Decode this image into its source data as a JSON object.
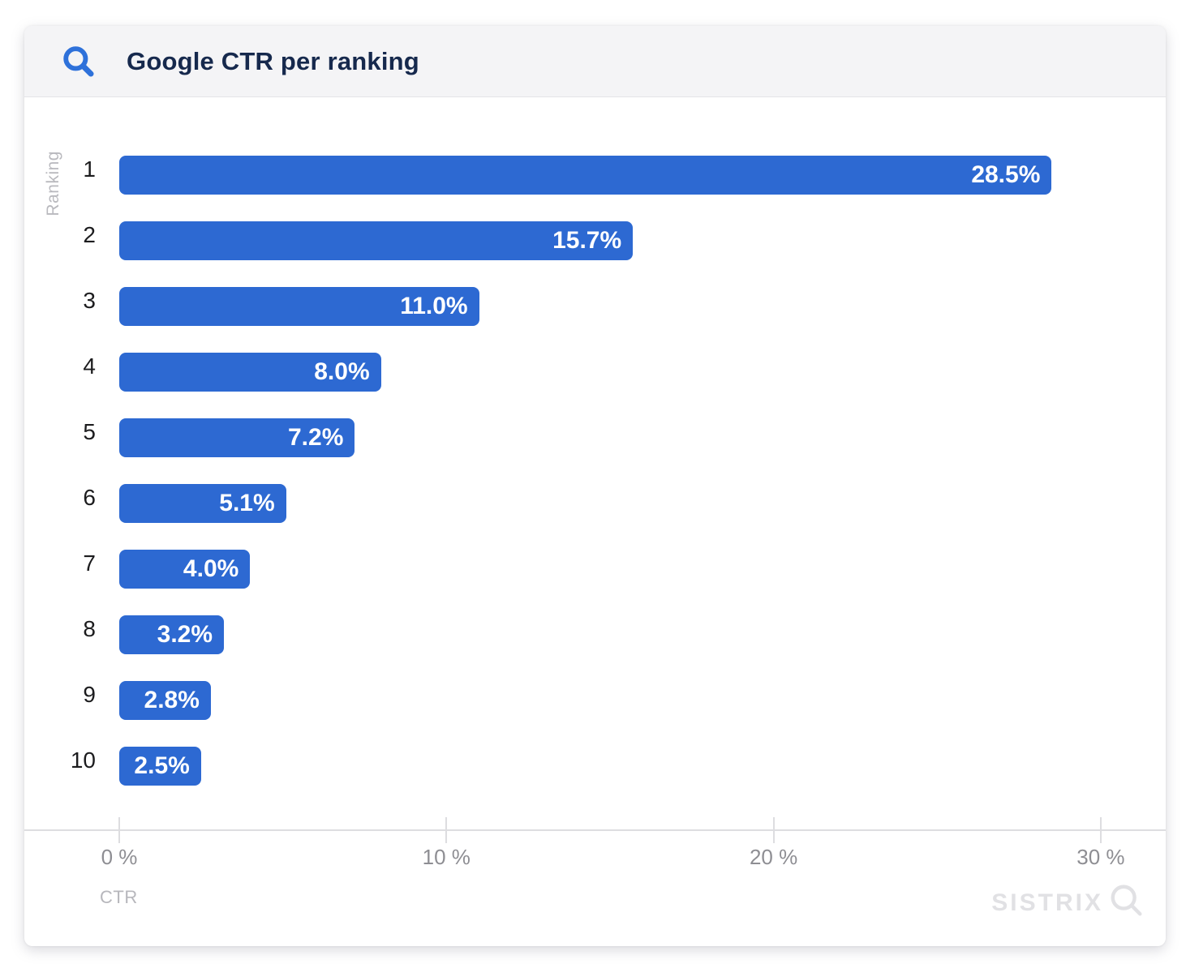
{
  "card": {
    "header": {
      "title": "Google CTR per ranking",
      "icon": "search-icon"
    },
    "watermark": {
      "text": "SISTRIX",
      "icon": "magnifier-icon"
    }
  },
  "colors": {
    "bar_blue": "#2d69d2",
    "header_icon_blue": "#2e71da",
    "title_navy": "#16294d",
    "axis_gray": "#dddde0",
    "tick_text_gray": "#8e8e93",
    "axis_title_gray": "#b7b7bc",
    "watermark_gray": "#e1e1e4"
  },
  "chart_data": {
    "type": "bar",
    "orientation": "horizontal",
    "title": "Google CTR per ranking",
    "categories": [
      "1",
      "2",
      "3",
      "4",
      "5",
      "6",
      "7",
      "8",
      "9",
      "10"
    ],
    "values": [
      28.5,
      15.7,
      11.0,
      8.0,
      7.2,
      5.1,
      4.0,
      3.2,
      2.8,
      2.5
    ],
    "value_labels": [
      "28.5%",
      "15.7%",
      "11.0%",
      "8.0%",
      "7.2%",
      "5.1%",
      "4.0%",
      "3.2%",
      "2.8%",
      "2.5%"
    ],
    "xlabel": "CTR",
    "ylabel": "Ranking",
    "x_ticks": [
      {
        "value": 0,
        "label": "0 %"
      },
      {
        "value": 10,
        "label": "10 %"
      },
      {
        "value": 20,
        "label": "20 %"
      },
      {
        "value": 30,
        "label": "30 %"
      }
    ],
    "xlim": [
      0,
      32
    ],
    "grid": false,
    "legend": false,
    "bar_color": "#2d69d2",
    "value_label_color": "#ffffff"
  }
}
